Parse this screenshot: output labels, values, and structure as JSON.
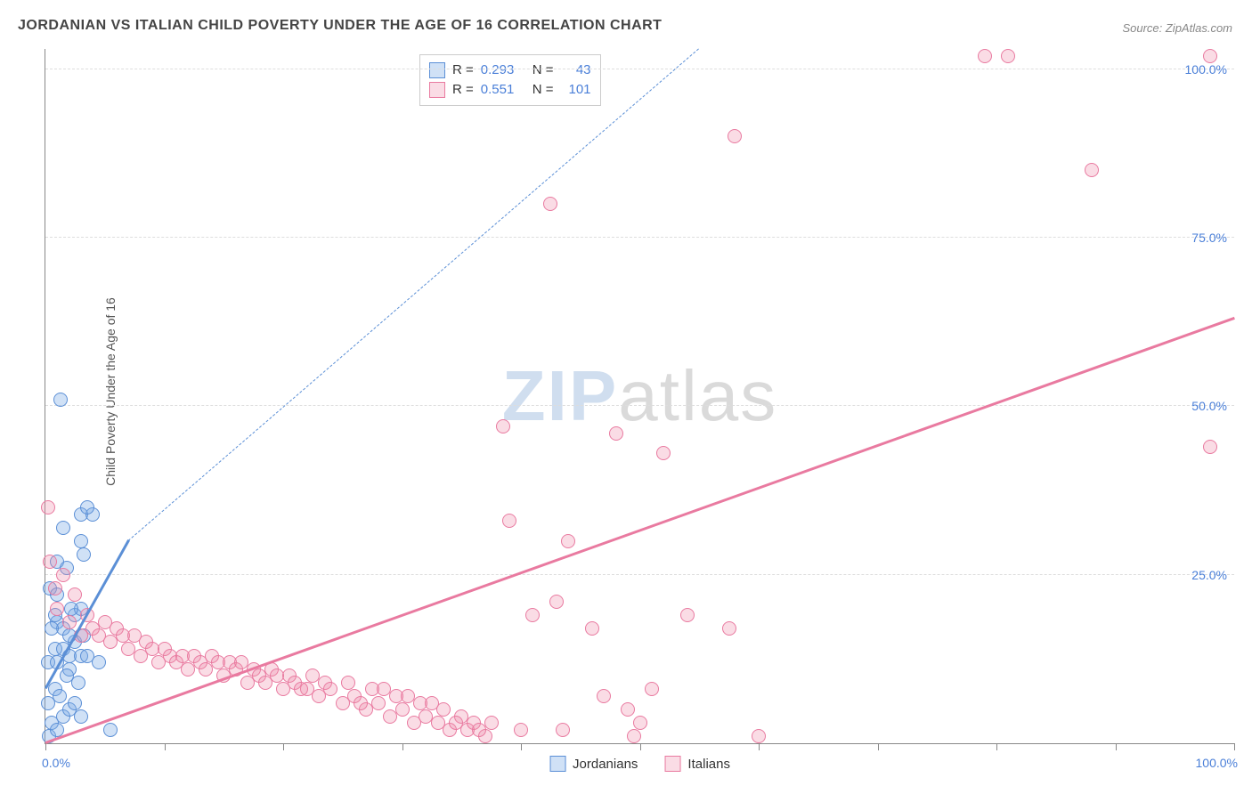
{
  "title": "JORDANIAN VS ITALIAN CHILD POVERTY UNDER THE AGE OF 16 CORRELATION CHART",
  "source": "Source: ZipAtlas.com",
  "ylabel": "Child Poverty Under the Age of 16",
  "watermark": {
    "part1": "ZIP",
    "part2": "atlas"
  },
  "chart": {
    "type": "scatter",
    "xlim": [
      0,
      100
    ],
    "ylim": [
      0,
      103
    ],
    "xtick_major": [
      0,
      100
    ],
    "xtick_minor": [
      10,
      20,
      30,
      40,
      50,
      60,
      70,
      80,
      90
    ],
    "ytick_positions": [
      25,
      50,
      75,
      100
    ],
    "ytick_labels": [
      "25.0%",
      "50.0%",
      "75.0%",
      "100.0%"
    ],
    "xtick_labels": {
      "0": "0.0%",
      "100": "100.0%"
    },
    "background_color": "#ffffff",
    "grid_color": "#dddddd",
    "axis_label_color": "#4a7fd8",
    "marker_radius": 8,
    "marker_stroke_width": 1.5,
    "series": [
      {
        "name": "Jordanians",
        "fill": "rgba(120,170,230,0.35)",
        "stroke": "#5b8fd6",
        "R": 0.293,
        "N": 43,
        "trend": {
          "x1": 0,
          "y1": 8,
          "x2": 7,
          "y2": 30,
          "dash_to_x": 55,
          "dash_to_y": 103
        },
        "points": [
          [
            0.3,
            1
          ],
          [
            0.5,
            3
          ],
          [
            1,
            2
          ],
          [
            1.5,
            4
          ],
          [
            0.2,
            6
          ],
          [
            0.8,
            8
          ],
          [
            1.2,
            7
          ],
          [
            2,
            5
          ],
          [
            2.5,
            6
          ],
          [
            3,
            4
          ],
          [
            0.2,
            12
          ],
          [
            0.8,
            14
          ],
          [
            1.5,
            14
          ],
          [
            2,
            13
          ],
          [
            2.5,
            15
          ],
          [
            3,
            13
          ],
          [
            3.5,
            13
          ],
          [
            1,
            18
          ],
          [
            1.5,
            17
          ],
          [
            2,
            16
          ],
          [
            0.4,
            23
          ],
          [
            1,
            22
          ],
          [
            2.5,
            19
          ],
          [
            3,
            20
          ],
          [
            1,
            27
          ],
          [
            1.8,
            26
          ],
          [
            3.2,
            28
          ],
          [
            3,
            30
          ],
          [
            1.5,
            32
          ],
          [
            3,
            34
          ],
          [
            4,
            34
          ],
          [
            3.5,
            35
          ],
          [
            1.3,
            51
          ],
          [
            2,
            11
          ],
          [
            2.8,
            9
          ],
          [
            1.8,
            10
          ],
          [
            0.5,
            17
          ],
          [
            1,
            12
          ],
          [
            4.5,
            12
          ],
          [
            2.2,
            20
          ],
          [
            0.8,
            19
          ],
          [
            5.5,
            2
          ],
          [
            3.2,
            16
          ]
        ]
      },
      {
        "name": "Italians",
        "fill": "rgba(240,140,170,0.30)",
        "stroke": "#e97aa0",
        "R": 0.551,
        "N": 101,
        "trend": {
          "x1": 0,
          "y1": 0,
          "x2": 100,
          "y2": 63
        },
        "points": [
          [
            0.2,
            35
          ],
          [
            0.4,
            27
          ],
          [
            0.8,
            23
          ],
          [
            1,
            20
          ],
          [
            1.5,
            25
          ],
          [
            2,
            18
          ],
          [
            2.5,
            22
          ],
          [
            3,
            16
          ],
          [
            3.5,
            19
          ],
          [
            4,
            17
          ],
          [
            4.5,
            16
          ],
          [
            5,
            18
          ],
          [
            5.5,
            15
          ],
          [
            6,
            17
          ],
          [
            6.5,
            16
          ],
          [
            7,
            14
          ],
          [
            7.5,
            16
          ],
          [
            8,
            13
          ],
          [
            8.5,
            15
          ],
          [
            9,
            14
          ],
          [
            9.5,
            12
          ],
          [
            10,
            14
          ],
          [
            10.5,
            13
          ],
          [
            11,
            12
          ],
          [
            11.5,
            13
          ],
          [
            12,
            11
          ],
          [
            12.5,
            13
          ],
          [
            13,
            12
          ],
          [
            13.5,
            11
          ],
          [
            14,
            13
          ],
          [
            14.5,
            12
          ],
          [
            15,
            10
          ],
          [
            15.5,
            12
          ],
          [
            16,
            11
          ],
          [
            17,
            9
          ],
          [
            17.5,
            11
          ],
          [
            18,
            10
          ],
          [
            18.5,
            9
          ],
          [
            19,
            11
          ],
          [
            20,
            8
          ],
          [
            20.5,
            10
          ],
          [
            21,
            9
          ],
          [
            22,
            8
          ],
          [
            22.5,
            10
          ],
          [
            23,
            7
          ],
          [
            23.5,
            9
          ],
          [
            24,
            8
          ],
          [
            25,
            6
          ],
          [
            25.5,
            9
          ],
          [
            26,
            7
          ],
          [
            27,
            5
          ],
          [
            27.5,
            8
          ],
          [
            28,
            6
          ],
          [
            28.5,
            8
          ],
          [
            29,
            4
          ],
          [
            29.5,
            7
          ],
          [
            30,
            5
          ],
          [
            30.5,
            7
          ],
          [
            31,
            3
          ],
          [
            31.5,
            6
          ],
          [
            32,
            4
          ],
          [
            32.5,
            6
          ],
          [
            33,
            3
          ],
          [
            33.5,
            5
          ],
          [
            34,
            2
          ],
          [
            35,
            4
          ],
          [
            35.5,
            2
          ],
          [
            36,
            3
          ],
          [
            37,
            1
          ],
          [
            37.5,
            3
          ],
          [
            38.5,
            47
          ],
          [
            42.5,
            80
          ],
          [
            39,
            33
          ],
          [
            41,
            19
          ],
          [
            44,
            30
          ],
          [
            43,
            21
          ],
          [
            48,
            46
          ],
          [
            49,
            5
          ],
          [
            49.5,
            1
          ],
          [
            51,
            8
          ],
          [
            52,
            43
          ],
          [
            54,
            19
          ],
          [
            57.5,
            17
          ],
          [
            58,
            90
          ],
          [
            60,
            1
          ],
          [
            79,
            102
          ],
          [
            81,
            102
          ],
          [
            88,
            85
          ],
          [
            98,
            102
          ],
          [
            98,
            44
          ],
          [
            43.5,
            2
          ],
          [
            40,
            2
          ],
          [
            46,
            17
          ],
          [
            47,
            7
          ],
          [
            50,
            3
          ],
          [
            16.5,
            12
          ],
          [
            19.5,
            10
          ],
          [
            21.5,
            8
          ],
          [
            26.5,
            6
          ],
          [
            34.5,
            3
          ],
          [
            36.5,
            2
          ]
        ]
      }
    ]
  },
  "legend_top": {
    "rows": [
      {
        "swatch_fill": "rgba(120,170,230,0.35)",
        "swatch_stroke": "#5b8fd6",
        "r_label": "R =",
        "r_val": "0.293",
        "n_label": "N =",
        "n_val": "43"
      },
      {
        "swatch_fill": "rgba(240,140,170,0.30)",
        "swatch_stroke": "#e97aa0",
        "r_label": "R =",
        "r_val": "0.551",
        "n_label": "N =",
        "n_val": "101"
      }
    ]
  },
  "legend_bottom": {
    "items": [
      {
        "swatch_fill": "rgba(120,170,230,0.35)",
        "swatch_stroke": "#5b8fd6",
        "label": "Jordanians"
      },
      {
        "swatch_fill": "rgba(240,140,170,0.30)",
        "swatch_stroke": "#e97aa0",
        "label": "Italians"
      }
    ]
  }
}
